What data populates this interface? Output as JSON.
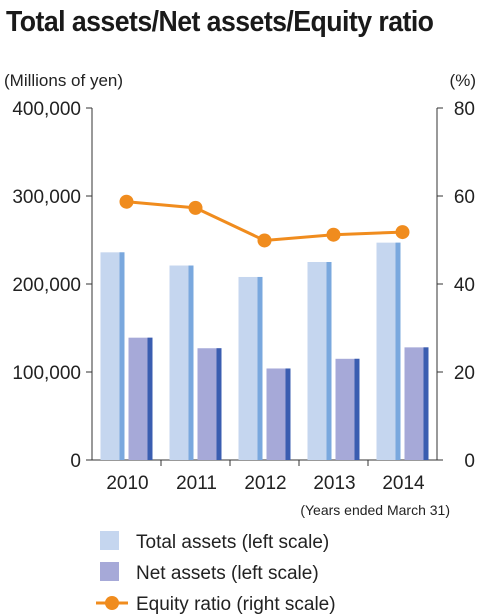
{
  "title": "Total assets/Net assets/Equity ratio",
  "chart_data": {
    "type": "bar",
    "categories": [
      "2010",
      "2011",
      "2012",
      "2013",
      "2014"
    ],
    "left_axis": {
      "unit_label": "(Millions of yen)",
      "range": [
        0,
        400000
      ],
      "ticks": [
        "0",
        "100,000",
        "200,000",
        "300,000",
        "400,000"
      ]
    },
    "right_axis": {
      "unit_label": "(%)",
      "range": [
        0,
        80
      ],
      "ticks": [
        "0",
        "20",
        "40",
        "60",
        "80"
      ]
    },
    "x_note": "(Years ended March 31)",
    "grid": false,
    "legend_placement": "bottom",
    "series": [
      {
        "name": "Total assets (left scale)",
        "type": "bar",
        "axis": "left",
        "values": [
          236000,
          221000,
          208000,
          225000,
          247000
        ],
        "color": "#c5d6ef",
        "shade": "#7aa8de"
      },
      {
        "name": "Net assets (left scale)",
        "type": "bar",
        "axis": "left",
        "values": [
          139000,
          127000,
          104000,
          115000,
          128000
        ],
        "color": "#a6a9d8",
        "shade": "#3a5db0"
      },
      {
        "name": "Equity ratio (right scale)",
        "type": "line",
        "axis": "right",
        "values": [
          58.7,
          57.3,
          49.9,
          51.2,
          51.8
        ],
        "color": "#f08c1e"
      }
    ]
  }
}
